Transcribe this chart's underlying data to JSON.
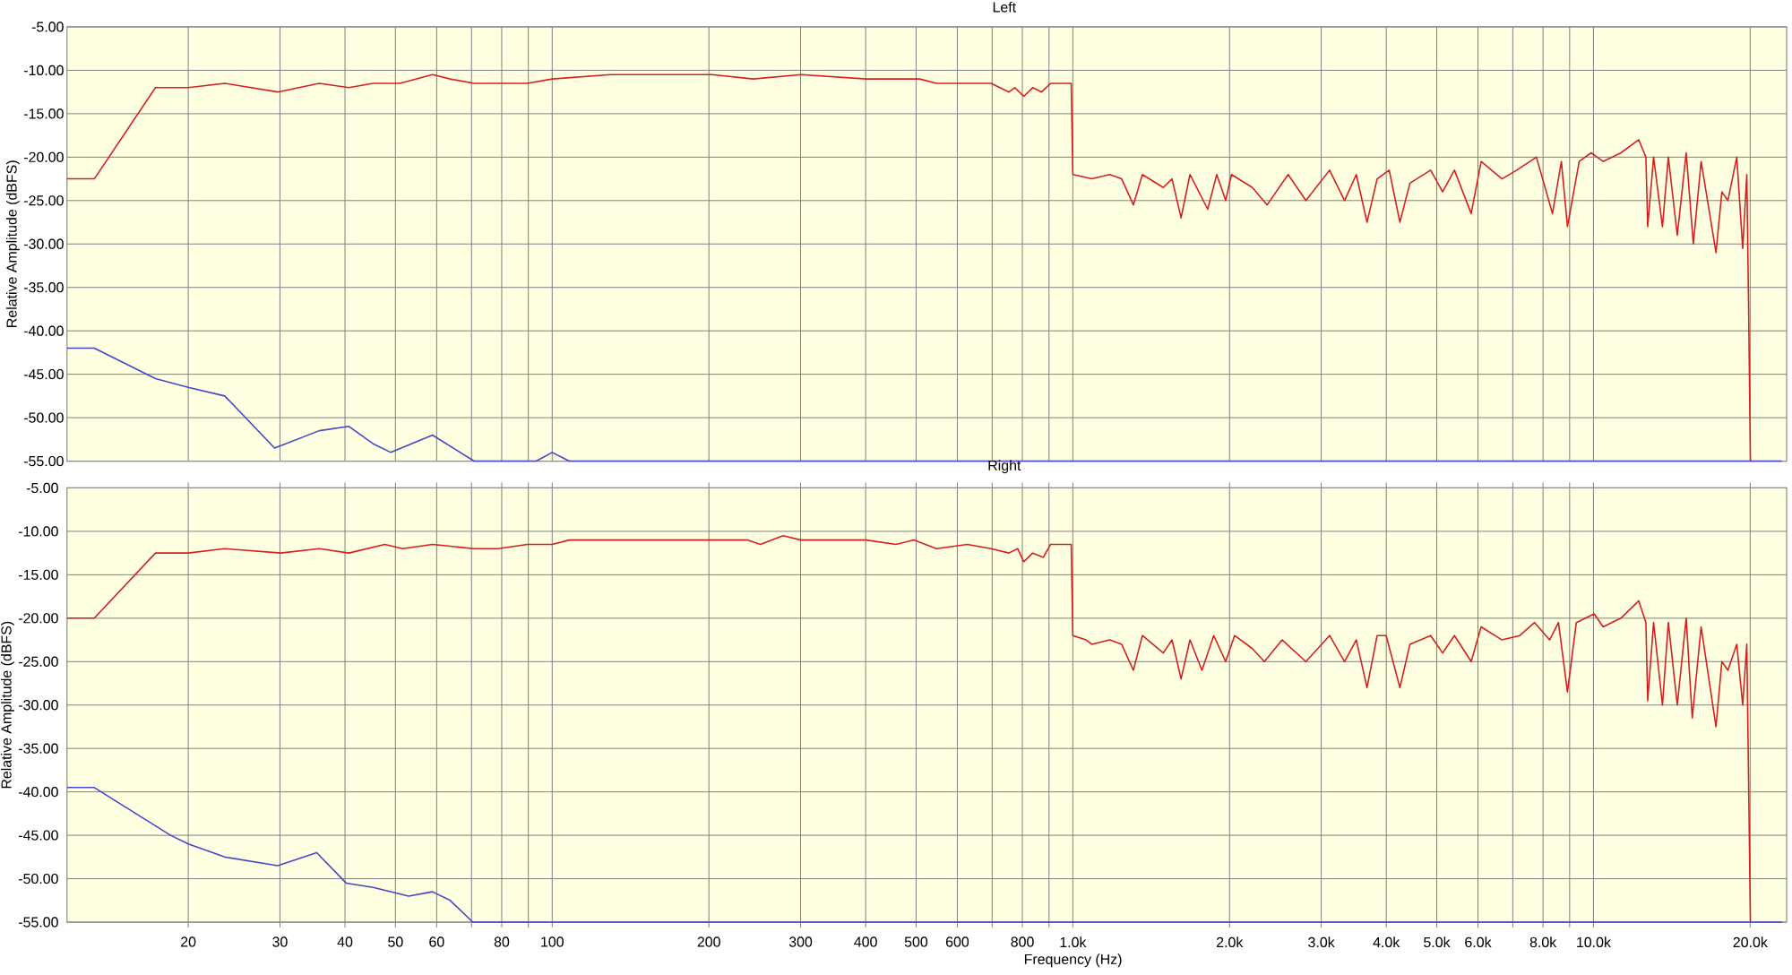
{
  "chart_data": [
    {
      "type": "line",
      "title": "Left",
      "ylabel": "Relative Amplitude (dBFS)",
      "log": "x",
      "grid": true,
      "tick_labels": "y",
      "line_style": "solid",
      "xlim": [
        11.7,
        23500
      ],
      "ylim": [
        -55,
        -5
      ],
      "xticks": [
        20,
        30,
        40,
        50,
        60,
        70,
        80,
        90,
        100,
        200,
        300,
        400,
        500,
        600,
        700,
        800,
        900,
        1000,
        2000,
        3000,
        4000,
        5000,
        6000,
        7000,
        8000,
        9000,
        10000,
        20000
      ],
      "yticks": [
        {
          "value": -5,
          "label": "-5.00"
        },
        {
          "value": -10,
          "label": "-10.00"
        },
        {
          "value": -15,
          "label": "-15.00"
        },
        {
          "value": -20,
          "label": "-20.00"
        },
        {
          "value": -25,
          "label": "-25.00"
        },
        {
          "value": -30,
          "label": "-30.00"
        },
        {
          "value": -35,
          "label": "-35.00"
        },
        {
          "value": -40,
          "label": "-40.00"
        },
        {
          "value": -45,
          "label": "-45.00"
        },
        {
          "value": -50,
          "label": "-50.00"
        },
        {
          "value": -55,
          "label": "-55.00"
        }
      ],
      "series": [
        {
          "color": "#d42020",
          "x": [
            11.7,
            13.2,
            17.3,
            20.0,
            23.5,
            29.7,
            35.7,
            40.7,
            45.3,
            51,
            58.9,
            63.7,
            70.8,
            78.7,
            89.6,
            100,
            129.6,
            160,
            202.5,
            243.4,
            300.4,
            401,
            457.5,
            507.9,
            547,
            594.8,
            696.4,
            753.9,
            774,
            805,
            837.4,
            871.1,
            906.3,
            954.5,
            992.9,
            1000,
            1088,
            1177,
            1241,
            1307,
            1360,
            1492,
            1551,
            1614,
            1679,
            1816,
            1890,
            1966,
            2017,
            2212,
            2362,
            2591,
            2803,
            3113,
            3326,
            3503,
            3674,
            3842,
            4052,
            4248,
            4441,
            4867,
            5131,
            5407,
            5823,
            6085,
            6672,
            7123,
            7771,
            8342,
            8677,
            8913,
            9389,
            9897,
            10435,
            11290,
            12218,
            12610,
            12710,
            13046,
            13568,
            13925,
            14488,
            15070,
            15553,
            16100,
            17192,
            17645,
            18122,
            18850,
            19349,
            19705,
            19861,
            20020
          ],
          "values": [
            -22.5,
            -22.5,
            -12,
            -12,
            -11.5,
            -12.5,
            -11.5,
            -12,
            -11.5,
            -11.5,
            -10.5,
            -11,
            -11.5,
            -11.5,
            -11.5,
            -11,
            -10.5,
            -10.5,
            -10.5,
            -11,
            -10.5,
            -11,
            -11,
            -11,
            -11.5,
            -11.5,
            -11.5,
            -12.5,
            -12,
            -13,
            -12,
            -12.5,
            -11.5,
            -11.5,
            -11.5,
            -22,
            -22.5,
            -22,
            -22.5,
            -25.5,
            -22,
            -23.5,
            -22.5,
            -27,
            -22,
            -26,
            -22,
            -25,
            -22,
            -23.5,
            -25.5,
            -22,
            -25,
            -21.5,
            -25,
            -22,
            -27.5,
            -22.5,
            -21.5,
            -27.5,
            -23,
            -21.5,
            -24,
            -21.5,
            -26.5,
            -20.5,
            -22.5,
            -21.5,
            -20,
            -26.5,
            -20.5,
            -28,
            -20.5,
            -19.5,
            -20.5,
            -19.5,
            -18,
            -20,
            -28,
            -20,
            -28,
            -20,
            -29,
            -19.5,
            -30,
            -20.5,
            -31,
            -24,
            -25,
            -20,
            -30.5,
            -22,
            -37,
            -55
          ]
        },
        {
          "color": "#4646c8",
          "x": [
            11.7,
            13.2,
            17.3,
            20.0,
            23.5,
            29.3,
            35.7,
            40.7,
            45.3,
            49.0,
            58.9,
            70.8,
            93.2,
            100,
            107.8,
            23000
          ],
          "values": [
            -42,
            -42,
            -45.5,
            -46.5,
            -47.5,
            -53.5,
            -51.5,
            -51,
            -53,
            -54,
            -52,
            -55,
            -55,
            -54,
            -55,
            -55
          ]
        }
      ]
    },
    {
      "type": "line",
      "title": "Right",
      "xlabel": "Frequency (Hz)",
      "ylabel": "Relative Amplitude (dBFS)",
      "log": "x",
      "grid": true,
      "line_style": "solid",
      "xlim": [
        11.7,
        23500
      ],
      "ylim": [
        -55,
        -5
      ],
      "xticks": [
        20,
        30,
        40,
        50,
        60,
        {
          "value": 70,
          "label": null
        },
        80,
        {
          "value": 90,
          "label": null
        },
        100,
        200,
        300,
        400,
        500,
        600,
        {
          "value": 700,
          "label": null
        },
        800,
        {
          "value": 900,
          "label": null
        },
        {
          "value": 1000,
          "label": "1.0k"
        },
        {
          "value": 2000,
          "label": "2.0k"
        },
        {
          "value": 3000,
          "label": "3.0k"
        },
        {
          "value": 4000,
          "label": "4.0k"
        },
        {
          "value": 5000,
          "label": "5.0k"
        },
        {
          "value": 6000,
          "label": "6.0k"
        },
        {
          "value": 7000,
          "label": null
        },
        {
          "value": 8000,
          "label": "8.0k"
        },
        {
          "value": 9000,
          "label": null
        },
        {
          "value": 10000,
          "label": "10.0k"
        },
        {
          "value": 20000,
          "label": "20.0k"
        }
      ],
      "yticks": [
        {
          "value": -5,
          "label": "-5.00"
        },
        {
          "value": -10,
          "label": "-10.00"
        },
        {
          "value": -15,
          "label": "-15.00"
        },
        {
          "value": -20,
          "label": "-20.00"
        },
        {
          "value": -25,
          "label": "-25.00"
        },
        {
          "value": -30,
          "label": "-30.00"
        },
        {
          "value": -35,
          "label": "-35.00"
        },
        {
          "value": -40,
          "label": "-40.00"
        },
        {
          "value": -45,
          "label": "-45.00"
        },
        {
          "value": -50,
          "label": "-50.00"
        },
        {
          "value": -55,
          "label": "-55.00"
        }
      ],
      "series": [
        {
          "color": "#d42020",
          "x": [
            11.7,
            13.2,
            17.3,
            20.0,
            23.5,
            30.1,
            35.7,
            40.7,
            47.7,
            51.6,
            58.9,
            70.8,
            78.7,
            89.6,
            100,
            107.8,
            129.6,
            202.5,
            237.1,
            251.2,
            277.6,
            300.4,
            401,
            457.5,
            494.9,
            547,
            627,
            696.4,
            753.9,
            784,
            805,
            837.4,
            878,
            906.3,
            954.5,
            992.9,
            1000,
            1060,
            1088,
            1177,
            1241,
            1307,
            1360,
            1492,
            1551,
            1614,
            1679,
            1770,
            1865,
            1966,
            2045,
            2212,
            2333,
            2524,
            2803,
            3113,
            3326,
            3503,
            3674,
            3842,
            3998,
            4248,
            4441,
            4867,
            5131,
            5407,
            5823,
            6085,
            6672,
            7222,
            7709,
            8238,
            8567,
            8913,
            9270,
            10032,
            10435,
            11290,
            12218,
            12610,
            12710,
            13046,
            13568,
            13925,
            14488,
            15070,
            15478,
            16100,
            17192,
            17645,
            18122,
            18850,
            19349,
            19705,
            19861,
            20020
          ],
          "values": [
            -20,
            -20,
            -12.5,
            -12.5,
            -12,
            -12.5,
            -12,
            -12.5,
            -11.5,
            -12,
            -11.5,
            -12,
            -12,
            -11.5,
            -11.5,
            -11,
            -11,
            -11,
            -11,
            -11.5,
            -10.5,
            -11,
            -11,
            -11.5,
            -11,
            -12,
            -11.5,
            -12,
            -12.5,
            -12,
            -13.5,
            -12.5,
            -13,
            -11.5,
            -11.5,
            -11.5,
            -22,
            -22.5,
            -23,
            -22.5,
            -23,
            -26,
            -22,
            -24,
            -22.5,
            -27,
            -22.5,
            -26,
            -22,
            -25,
            -22,
            -23.5,
            -25,
            -22.5,
            -25,
            -22,
            -25,
            -22.5,
            -28,
            -22,
            -22,
            -28,
            -23,
            -22,
            -24,
            -22,
            -25,
            -21,
            -22.5,
            -22,
            -20.5,
            -22.5,
            -20.5,
            -28.5,
            -20.5,
            -19.5,
            -21,
            -20,
            -18,
            -20.5,
            -29.5,
            -20.5,
            -30,
            -20.5,
            -30,
            -20,
            -31.5,
            -21,
            -32.5,
            -25,
            -26,
            -23,
            -30,
            -23,
            -38.5,
            -55
          ]
        },
        {
          "color": "#4646c8",
          "x": [
            11.7,
            13.2,
            18.5,
            20.0,
            23.5,
            29.7,
            35.3,
            40.2,
            45.3,
            53.0,
            58.9,
            63.7,
            70.4,
            23000
          ],
          "values": [
            -39.5,
            -39.5,
            -45,
            -46,
            -47.5,
            -48.5,
            -47,
            -50.5,
            -51,
            -52,
            -51.5,
            -52.5,
            -55,
            -55
          ]
        }
      ]
    }
  ]
}
